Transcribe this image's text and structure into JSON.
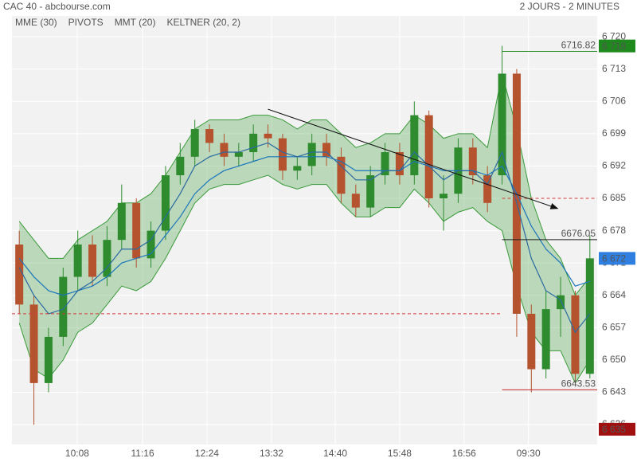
{
  "chart_data": {
    "type": "candlestick",
    "title": "CAC 40 - abcbourse.com",
    "subtitle": "2 JOURS - 2 MINUTES",
    "xlim": [
      0,
      40
    ],
    "ylim": [
      6631.7,
      6724.5
    ],
    "grid": true,
    "up_color": "#2e8b2e",
    "down_color": "#b5532f",
    "xticks": [
      {
        "value": 4.46,
        "label": "10:08"
      },
      {
        "value": 8.93,
        "label": "11:16"
      },
      {
        "value": 13.33,
        "label": "12:24"
      },
      {
        "value": 17.74,
        "label": "13:32"
      },
      {
        "value": 22.1,
        "label": "14:40"
      },
      {
        "value": 26.5,
        "label": "15:48"
      },
      {
        "value": 30.9,
        "label": "16:56"
      },
      {
        "value": 35.3,
        "label": "09:30"
      }
    ],
    "yticks": [
      {
        "value": 6720,
        "label": "6 720"
      },
      {
        "value": 6713,
        "label": "6 713"
      },
      {
        "value": 6706,
        "label": "6 706"
      },
      {
        "value": 6699,
        "label": "6 699"
      },
      {
        "value": 6692,
        "label": "6 692"
      },
      {
        "value": 6685,
        "label": "6 685"
      },
      {
        "value": 6678,
        "label": "6 678"
      },
      {
        "value": 6671,
        "label": "6 671"
      },
      {
        "value": 6664,
        "label": "6 664"
      },
      {
        "value": 6657,
        "label": "6 657"
      },
      {
        "value": 6650,
        "label": "6 650"
      },
      {
        "value": 6643,
        "label": "6 643"
      },
      {
        "value": 6636,
        "label": "6 636"
      }
    ],
    "open": [
      6675,
      6662,
      6645,
      6655,
      6668,
      6675,
      6668,
      6676,
      6684,
      6672,
      6678,
      6690,
      6694,
      6700,
      6697,
      6694,
      6695,
      6699,
      6698,
      6691,
      6692,
      6697,
      6694,
      6686,
      6683,
      6690,
      6695,
      6690,
      6703,
      6685,
      6686,
      6696,
      6690,
      6690,
      6712,
      6660,
      6648,
      6661,
      6664,
      6647
    ],
    "high": [
      6678,
      6664,
      6657,
      6670,
      6678,
      6677,
      6679,
      6688,
      6685,
      6680,
      6692,
      6697,
      6702,
      6701,
      6699,
      6697,
      6701,
      6701,
      6699,
      6694,
      6699,
      6699,
      6696,
      6688,
      6692,
      6697,
      6697,
      6706,
      6704,
      6690,
      6698,
      6698,
      6692,
      6718,
      6713,
      6662,
      6665,
      6668,
      6665,
      6677
    ],
    "low": [
      6660,
      6636,
      6643,
      6653,
      6665,
      6666,
      6666,
      6674,
      6670,
      6670,
      6676,
      6688,
      6692,
      6695,
      6692,
      6692,
      6693,
      6696,
      6689,
      6689,
      6690,
      6692,
      6684,
      6681,
      6681,
      6688,
      6688,
      6688,
      6683,
      6678,
      6684,
      6688,
      6682,
      6688,
      6655,
      6643,
      6646,
      6655,
      6645,
      6646
    ],
    "close": [
      6662,
      6645,
      6655,
      6668,
      6675,
      6668,
      6676,
      6684,
      6672,
      6678,
      6690,
      6694,
      6700,
      6697,
      6694,
      6695,
      6699,
      6698,
      6691,
      6692,
      6697,
      6694,
      6686,
      6683,
      6690,
      6695,
      6690,
      6703,
      6685,
      6686,
      6696,
      6690,
      6684,
      6712,
      6660,
      6648,
      6661,
      6664,
      6647,
      6672
    ],
    "mme": {
      "name": "MME (30)",
      "color": "#1b75bb",
      "values": [
        6672,
        6668,
        6665,
        6664,
        6665,
        6666,
        6668,
        6671,
        6672,
        6673,
        6677,
        6681,
        6686,
        6689,
        6691,
        6692,
        6693,
        6694,
        6694,
        6694,
        6694,
        6694,
        6693,
        6691,
        6691,
        6691,
        6691,
        6693,
        6692,
        6691,
        6691,
        6691,
        6690,
        6692,
        6686,
        6679,
        6674,
        6671,
        6666,
        6667
      ]
    },
    "pivots": {
      "name": "PIVOTS",
      "color": "#d23b3b",
      "legend_color": "#555555",
      "levels": [
        {
          "value": 6685,
          "x": [
            33.5,
            40
          ]
        },
        {
          "value": 6660,
          "x": [
            0,
            33.4
          ]
        }
      ]
    },
    "mmt": {
      "name": "MMT (20)",
      "color": "#2b6aa0",
      "values": [
        6670,
        6664,
        6660,
        6661,
        6665,
        6667,
        6670,
        6674,
        6674,
        6676,
        6681,
        6686,
        6692,
        6694,
        6695,
        6695,
        6696,
        6697,
        6695,
        6694,
        6695,
        6695,
        6692,
        6689,
        6689,
        6691,
        6691,
        6695,
        6692,
        6689,
        6691,
        6691,
        6688,
        6695,
        6684,
        6672,
        6665,
        6663,
        6656,
        6660
      ]
    },
    "keltner": {
      "name": "KELTNER (20, 2)",
      "color": "#3a9a3a",
      "upper": [
        6680,
        6676,
        6672,
        6672,
        6676,
        6678,
        6680,
        6684,
        6684,
        6686,
        6690,
        6695,
        6700,
        6702,
        6702,
        6702,
        6703,
        6703,
        6702,
        6700,
        6702,
        6702,
        6699,
        6696,
        6697,
        6699,
        6699,
        6703,
        6701,
        6698,
        6699,
        6699,
        6696,
        6712,
        6700,
        6685,
        6676,
        6672,
        6664,
        6668
      ],
      "lower": [
        6658,
        6648,
        6646,
        6650,
        6656,
        6658,
        6662,
        6666,
        6665,
        6667,
        6672,
        6678,
        6684,
        6687,
        6688,
        6688,
        6689,
        6690,
        6688,
        6687,
        6688,
        6688,
        6684,
        6681,
        6681,
        6683,
        6683,
        6687,
        6684,
        6680,
        6682,
        6683,
        6680,
        6678,
        6666,
        6656,
        6652,
        6652,
        6645,
        6650
      ]
    },
    "levels": [
      {
        "value": 6716.82,
        "color": "#2a8a2a",
        "x": [
          33.5,
          40
        ]
      },
      {
        "value": 6676.05,
        "color": "#222222",
        "x": [
          33.5,
          40
        ]
      },
      {
        "value": 6643.53,
        "color": "#c62828",
        "x": [
          33.5,
          40
        ]
      }
    ],
    "price_badges": [
      {
        "value": 6718,
        "label": "6 718",
        "color": "#1e8a1e"
      },
      {
        "value": 6672,
        "label": "6 672",
        "color": "#2f7fe0"
      },
      {
        "value": 6635,
        "label": "6 635",
        "color": "#a01010"
      }
    ],
    "trendline": {
      "x": [
        17.5,
        37.3
      ],
      "y": [
        6704.3,
        6682.8
      ]
    }
  }
}
